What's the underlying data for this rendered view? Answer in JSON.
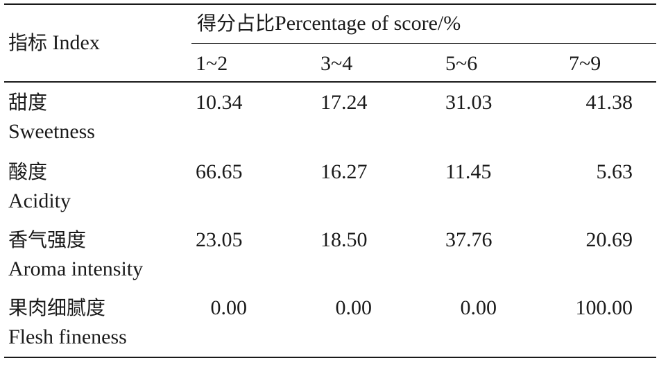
{
  "header": {
    "index_cn": "指标",
    "index_en": "Index",
    "group_cn": "得分占比",
    "group_en": "Percentage of score/%",
    "columns": [
      "1~2",
      "3~4",
      "5~6",
      "7~9"
    ]
  },
  "rows": [
    {
      "label_cn": "甜度",
      "label_en": "Sweetness",
      "values": [
        "10.34",
        "17.24",
        "31.03",
        "41.38"
      ]
    },
    {
      "label_cn": "酸度",
      "label_en": "Acidity",
      "values": [
        "66.65",
        "16.27",
        "11.45",
        "5.63"
      ]
    },
    {
      "label_cn": "香气强度",
      "label_en": "Aroma intensity",
      "values": [
        "23.05",
        "18.50",
        "37.76",
        "20.69"
      ]
    },
    {
      "label_cn": "果肉细腻度",
      "label_en": "Flesh fineness",
      "values": [
        "0.00",
        "0.00",
        "0.00",
        "100.00"
      ]
    }
  ]
}
